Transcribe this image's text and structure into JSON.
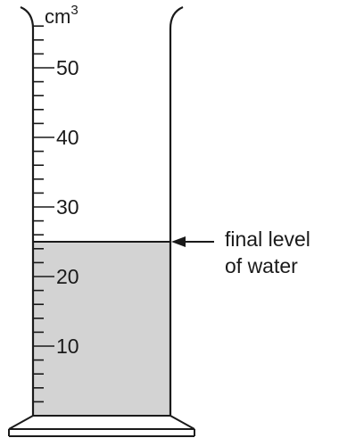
{
  "cylinder": {
    "unit_base": "cm",
    "unit_exponent": "3",
    "scale_max": 56,
    "major_marks": [
      {
        "value": 50,
        "label": "50"
      },
      {
        "value": 40,
        "label": "40"
      },
      {
        "value": 30,
        "label": "30"
      },
      {
        "value": 20,
        "label": "20"
      },
      {
        "value": 10,
        "label": "10"
      }
    ],
    "minor_step": 2
  },
  "water": {
    "level": 25,
    "fill_color": "#d3d3d3"
  },
  "annotation": {
    "line1": "final level",
    "line2": "of water"
  },
  "colors": {
    "stroke": "#1a1a1a"
  }
}
